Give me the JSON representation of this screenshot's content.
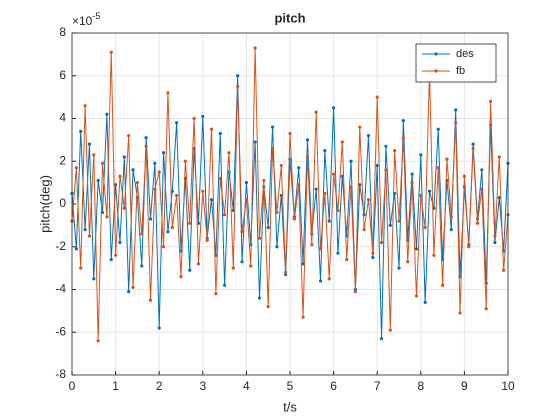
{
  "chart_data": {
    "type": "line",
    "title": "pitch",
    "xlabel": "t/s",
    "ylabel": "pitch(deg)",
    "y_multiplier": {
      "base": "×10",
      "exponent": "-5"
    },
    "x": [
      0,
      0.1,
      0.2,
      0.3,
      0.4,
      0.5,
      0.6,
      0.7,
      0.8,
      0.9,
      1,
      1.1,
      1.2,
      1.3,
      1.4,
      1.5,
      1.6,
      1.7,
      1.8,
      1.9,
      2,
      2.1,
      2.2,
      2.3,
      2.4,
      2.5,
      2.6,
      2.7,
      2.8,
      2.9,
      3,
      3.1,
      3.2,
      3.3,
      3.4,
      3.5,
      3.6,
      3.7,
      3.8,
      3.9,
      4,
      4.1,
      4.2,
      4.3,
      4.4,
      4.5,
      4.6,
      4.7,
      4.8,
      4.9,
      5,
      5.1,
      5.2,
      5.3,
      5.4,
      5.5,
      5.6,
      5.7,
      5.8,
      5.9,
      6,
      6.1,
      6.2,
      6.3,
      6.4,
      6.5,
      6.6,
      6.7,
      6.8,
      6.9,
      7,
      7.1,
      7.2,
      7.3,
      7.4,
      7.5,
      7.6,
      7.7,
      7.8,
      7.9,
      8,
      8.1,
      8.2,
      8.3,
      8.4,
      8.5,
      8.6,
      8.7,
      8.8,
      8.9,
      9,
      9.1,
      9.2,
      9.3,
      9.4,
      9.5,
      9.6,
      9.7,
      9.8,
      9.9,
      10
    ],
    "series": [
      {
        "name": "des",
        "color": "#0072BD",
        "values": [
          0.5,
          -2.1,
          3.4,
          -1.2,
          2.8,
          -3.5,
          1.1,
          -0.4,
          4.2,
          -2.6,
          0.9,
          -1.8,
          2.2,
          -4.1,
          1.6,
          0.3,
          -2.9,
          3.1,
          -0.7,
          1.9,
          -5.8,
          2.4,
          -1.3,
          0.6,
          3.8,
          -2.2,
          1.2,
          -3.1,
          2.6,
          -0.9,
          4.1,
          -1.6,
          0.2,
          -2.4,
          3.3,
          -3.8,
          1.5,
          -0.3,
          6.0,
          -2.7,
          1.0,
          -1.9,
          2.9,
          -4.4,
          0.8,
          -1.1,
          3.6,
          -2.0,
          0.4,
          -3.3,
          2.1,
          -0.6,
          1.7,
          -2.8,
          3.0,
          -1.4,
          0.7,
          -3.6,
          2.5,
          -0.8,
          4.5,
          -2.3,
          1.3,
          -1.5,
          2.0,
          -4.0,
          0.9,
          -0.5,
          3.2,
          -2.5,
          1.8,
          -6.3,
          2.7,
          -1.0,
          0.5,
          -3.0,
          3.9,
          -1.7,
          1.4,
          -2.1,
          2.3,
          -4.6,
          0.6,
          -0.2,
          3.5,
          -2.6,
          1.1,
          -1.2,
          4.4,
          -3.4,
          0.8,
          -1.9,
          2.8,
          -0.7,
          1.6,
          -3.7,
          3.7,
          -1.8,
          0.3,
          -2.2,
          1.9
        ]
      },
      {
        "name": "fb",
        "color": "#D95319",
        "values": [
          -0.8,
          1.7,
          -3.0,
          4.6,
          -1.5,
          2.3,
          -6.4,
          1.9,
          -0.6,
          7.1,
          -2.4,
          1.3,
          -0.2,
          3.2,
          -3.9,
          1.0,
          -1.4,
          2.7,
          -4.5,
          0.7,
          1.5,
          -2.0,
          5.2,
          -1.1,
          0.4,
          -3.4,
          2.0,
          -0.9,
          4.0,
          -2.8,
          0.6,
          -1.7,
          3.5,
          -4.2,
          1.2,
          -0.5,
          2.4,
          -3.0,
          5.5,
          -1.3,
          0.2,
          -2.9,
          7.3,
          -1.6,
          1.1,
          -4.8,
          2.6,
          -0.4,
          1.8,
          -3.2,
          3.3,
          -0.7,
          0.9,
          -5.3,
          2.2,
          -1.9,
          4.3,
          -2.1,
          0.5,
          -3.5,
          1.4,
          -0.3,
          2.9,
          -2.6,
          0.8,
          -4.1,
          3.6,
          -1.2,
          0.2,
          -2.3,
          5.0,
          -1.8,
          1.6,
          -5.9,
          2.5,
          -0.8,
          3.1,
          -2.7,
          1.0,
          -4.3,
          0.4,
          -1.1,
          6.2,
          -2.4,
          1.7,
          -3.8,
          2.1,
          -0.6,
          3.8,
          -5.1,
          1.3,
          -2.0,
          2.6,
          -0.9,
          0.7,
          -4.9,
          4.8,
          -1.5,
          2.2,
          -3.1,
          -0.5
        ]
      }
    ],
    "xlim": [
      0,
      10
    ],
    "xticks": [
      0,
      1,
      2,
      3,
      4,
      5,
      6,
      7,
      8,
      9,
      10
    ],
    "ylim": [
      -8,
      8
    ],
    "yticks": [
      -8,
      -6,
      -4,
      -2,
      0,
      2,
      4,
      6,
      8
    ],
    "grid": true,
    "legend": "northeast"
  }
}
